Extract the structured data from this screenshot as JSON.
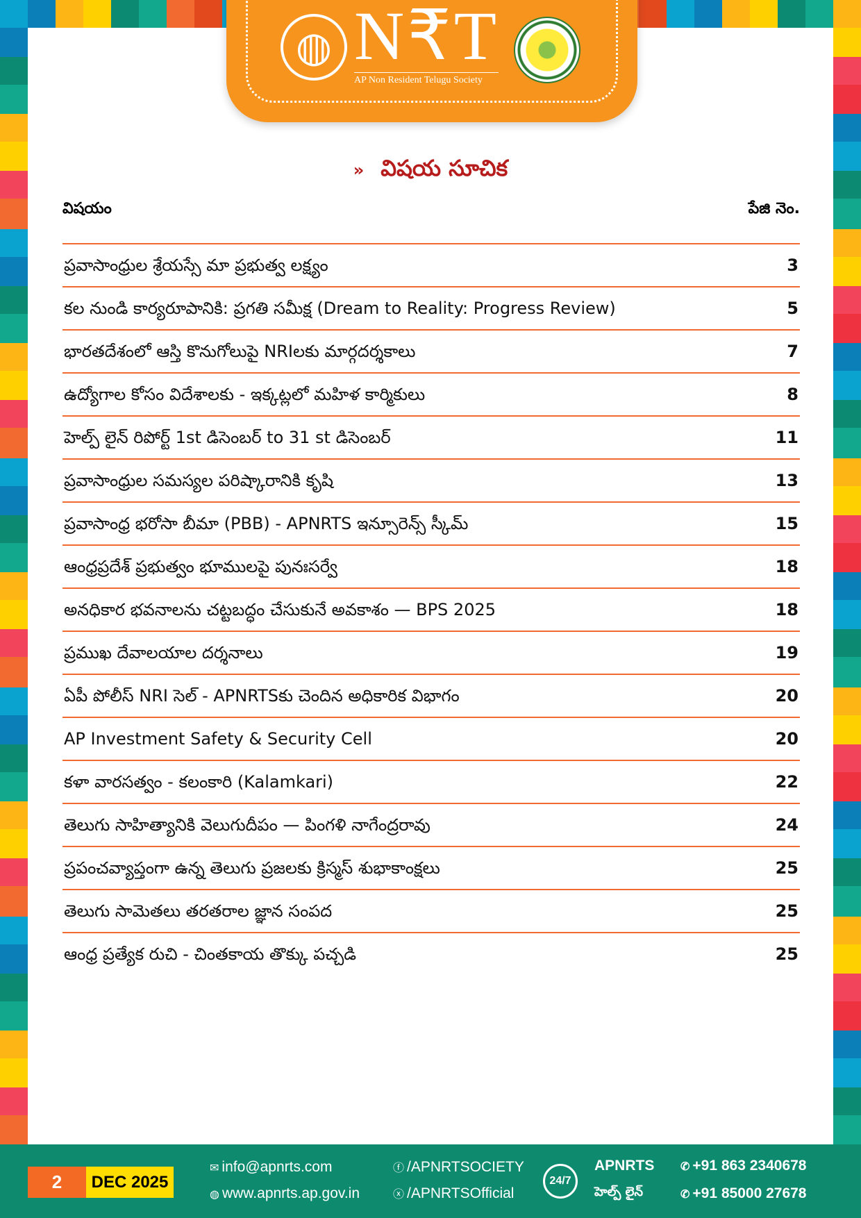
{
  "header": {
    "logo_text": "N₹T",
    "logo_subtitle": "AP Non Resident Telugu Society",
    "globe_icon": "globe-icon",
    "seal_icon": "ap-government-seal"
  },
  "title": {
    "chevron": "»",
    "text": "విషయ సూచిక"
  },
  "columns": {
    "topic": "విషయం",
    "page": "పేజి నెం."
  },
  "toc": [
    {
      "topic": "ప్రవాసాంధ్రుల శ్రేయస్సే మా ప్రభుత్వ లక్ష్యం",
      "page": "3"
    },
    {
      "topic": "కల నుండి కార్యరూపానికి: ప్రగతి సమీక్ష (Dream to Reality: Progress Review)",
      "page": "5"
    },
    {
      "topic": "భారతదేశంలో ఆస్తి కొనుగోలుపై NRIలకు మార్గదర్శకాలు",
      "page": "7"
    },
    {
      "topic": "ఉద్యోగాల కోసం విదేశాలకు - ఇక్కట్లలో మహిళ కార్మికులు",
      "page": "8"
    },
    {
      "topic": "హెల్ప్ లైన్ రిపోర్ట్ 1st డిసెంబర్ to 31 st డిసెంబర్",
      "page": "11"
    },
    {
      "topic": "ప్రవాసాంధ్రుల సమస్యల పరిష్కారానికి కృషి",
      "page": "13"
    },
    {
      "topic": "ప్రవాసాంధ్ర భరోసా బీమా (PBB) - APNRTS ఇన్సూరెన్స్ స్కీమ్",
      "page": "15"
    },
    {
      "topic": "ఆంధ్రప్రదేశ్ ప్రభుత్వం భూములపై పునఃసర్వే",
      "page": "18"
    },
    {
      "topic": "అనధికార భవనాలను చట్టబద్ధం చేసుకునే అవకాశం — BPS 2025",
      "page": "18"
    },
    {
      "topic": "ప్రముఖ దేవాలయాల దర్శనాలు",
      "page": "19"
    },
    {
      "topic": "ఏపీ పోలీస్ NRI సెల్ - APNRTSకు చెందిన అధికారిక విభాగం",
      "page": "20"
    },
    {
      "topic": "AP Investment Safety & Security Cell",
      "page": "20"
    },
    {
      "topic": "కళా వారసత్వం - కలంకారి (Kalamkari)",
      "page": "22"
    },
    {
      "topic": "తెలుగు సాహిత్యానికి వెలుగుదీపం — పింగళి నాగేంద్రరావు",
      "page": "24"
    },
    {
      "topic": "ప్రపంచవ్యాప్తంగా ఉన్న తెలుగు ప్రజలకు క్రిస్మస్ శుభాకాంక్షలు",
      "page": "25"
    },
    {
      "topic": "తెలుగు సామెతలు తరతరాల జ్ఞాన సంపద",
      "page": "25"
    },
    {
      "topic": "ఆంధ్ర ప్రత్యేక రుచి - చింతకాయ తొక్కు పచ్చడి",
      "page": "25"
    }
  ],
  "footer": {
    "page_number": "2",
    "issue": "DEC 2025",
    "email": "info@apnrts.com",
    "website": "www.apnrts.ap.gov.in",
    "facebook": "/APNRTSOCIETY",
    "x": "/APNRTSOfficial",
    "helpline_badge": "24/7",
    "helpline_name": "APNRTS",
    "helpline_label": "హెల్ప్ లైన్",
    "phone": "+91 863 2340678",
    "whatsapp": "+91 85000 27678"
  },
  "colors": {
    "accent_orange": "#f7941d",
    "title_red": "#b71c1c",
    "rule": "#f26a30",
    "footer_green": "#0e8a6e",
    "issue_yellow": "#ffdd00"
  }
}
